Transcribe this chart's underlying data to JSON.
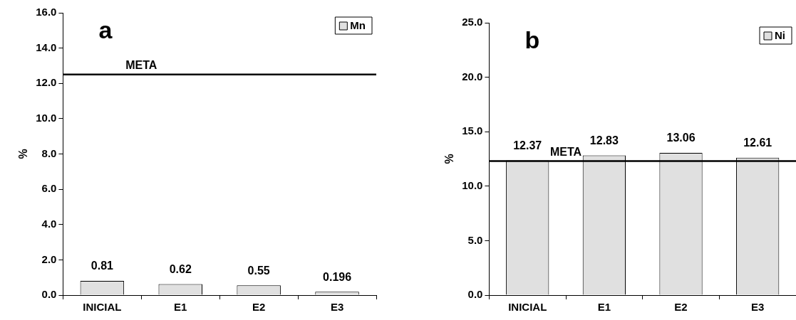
{
  "chart_data": [
    {
      "type": "bar",
      "annotations": [
        "a"
      ],
      "ylabel": "%",
      "categories": [
        "INICIAL",
        "E1",
        "E2",
        "E3"
      ],
      "series": [
        {
          "name": "Mn",
          "color": "#e0e0e0",
          "values": [
            0.81,
            0.62,
            0.55,
            0.196
          ]
        }
      ],
      "ylim": [
        0,
        16
      ],
      "yticks": [
        {
          "value": 0,
          "label": "0.0"
        },
        {
          "value": 2,
          "label": "2.0"
        },
        {
          "value": 4,
          "label": "4.0"
        },
        {
          "value": 6,
          "label": "6.0"
        },
        {
          "value": 8,
          "label": "8.0"
        },
        {
          "value": 10,
          "label": "10.0"
        },
        {
          "value": 12,
          "label": "12.0"
        },
        {
          "value": 14,
          "label": "14.0"
        },
        {
          "value": 16,
          "label": "16.0"
        }
      ],
      "ref_lines": [
        {
          "axis": "y",
          "value": 12.5,
          "label": "META"
        }
      ],
      "data_labels": true,
      "legend": "top right",
      "grid": false
    },
    {
      "type": "bar",
      "annotations": [
        "b"
      ],
      "ylabel": "%",
      "categories": [
        "INICIAL",
        "E1",
        "E2",
        "E3"
      ],
      "series": [
        {
          "name": "Ni",
          "color": "#e0e0e0",
          "values": [
            12.37,
            12.83,
            13.06,
            12.61
          ]
        }
      ],
      "ylim": [
        0,
        25
      ],
      "yticks": [
        {
          "value": 0,
          "label": "0.0"
        },
        {
          "value": 5,
          "label": "5.0"
        },
        {
          "value": 10,
          "label": "10.0"
        },
        {
          "value": 15,
          "label": "15.0"
        },
        {
          "value": 20,
          "label": "20.0"
        },
        {
          "value": 25,
          "label": "25.0"
        }
      ],
      "ref_lines": [
        {
          "axis": "y",
          "value": 12.3,
          "label": "META"
        }
      ],
      "data_labels": true,
      "legend": "top right",
      "grid": false
    }
  ]
}
